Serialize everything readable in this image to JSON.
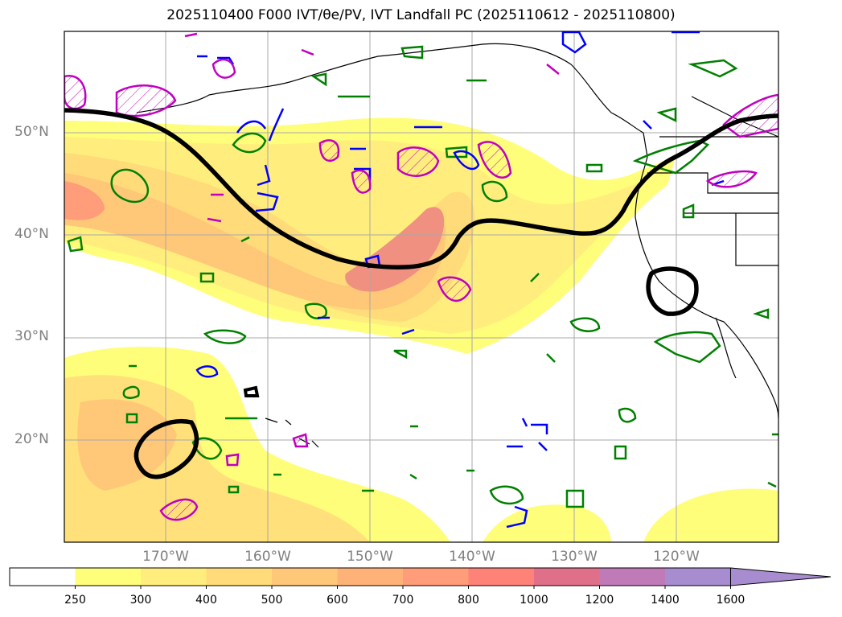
{
  "title": "2025110400 F000 IVT/θe/PV, IVT Landfall PC (2025110612 - 2025110800)",
  "lat_labels": [
    "50°N",
    "40°N",
    "30°N",
    "20°N"
  ],
  "lon_labels": [
    "170°W",
    "160°W",
    "150°W",
    "140°W",
    "130°W",
    "120°W"
  ],
  "colorbar": {
    "ticks": [
      "250",
      "300",
      "400",
      "500",
      "600",
      "700",
      "800",
      "1000",
      "1200",
      "1400",
      "1600"
    ],
    "colors": [
      "#ffffff",
      "#fffe7a",
      "#ffee7d",
      "#ffdb7a",
      "#ffc878",
      "#ffb278",
      "#ff9c79",
      "#ff8279",
      "#e0708a",
      "#c07ab8",
      "#a78cd0"
    ],
    "extend": "max"
  },
  "contour_colors": {
    "theta_e": "#008000",
    "pv_dashed": "#0000ff",
    "pv_hatched": "#c000c0",
    "landfall_pc": "#000000"
  }
}
